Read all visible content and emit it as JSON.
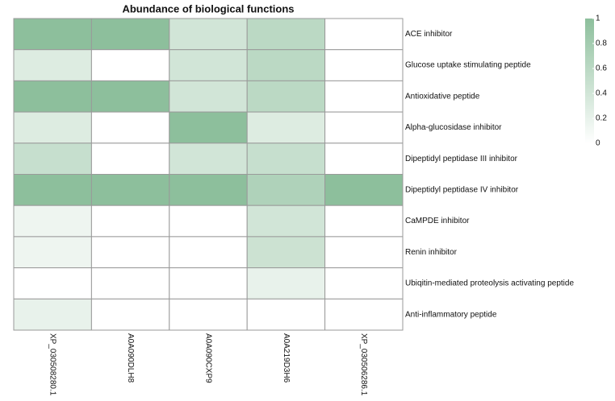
{
  "chart_data": {
    "type": "heatmap",
    "title": "Abundance of biological functions",
    "columns": [
      "XP_030508280.1",
      "A0A090DLH8",
      "A0A090CXP9",
      "A0A219D3H6",
      "XP_030506286.1"
    ],
    "rows": [
      "ACE inhibitor",
      "Glucose uptake stimulating peptide",
      "Antioxidative peptide",
      "Alpha-glucosidase inhibitor",
      "Dipeptidyl peptidase III inhibitor",
      "Dipeptidyl peptidase IV inhibitor",
      "CaMPDE inhibitor",
      "Renin inhibitor",
      "Ubiqitin-mediated proteolysis activating peptide",
      "Anti-inflammatory peptide"
    ],
    "values": [
      [
        1,
        1,
        0.4,
        0.6,
        0
      ],
      [
        0.3,
        0,
        0.4,
        0.6,
        0
      ],
      [
        1,
        1,
        0.4,
        0.6,
        0
      ],
      [
        0.3,
        0,
        1,
        0.3,
        0
      ],
      [
        0.5,
        0,
        0.4,
        0.5,
        0
      ],
      [
        1,
        1,
        1,
        0.7,
        1
      ],
      [
        0.15,
        0,
        0,
        0.4,
        0
      ],
      [
        0.15,
        0,
        0,
        0.45,
        0
      ],
      [
        0,
        0,
        0,
        0.2,
        0
      ],
      [
        0.2,
        0,
        0,
        0,
        0
      ]
    ],
    "colors": [
      "#ffffff",
      "#8dbf9c"
    ],
    "clim": [
      0,
      1
    ],
    "cticks": [
      0,
      0.2,
      0.4,
      0.6,
      0.8,
      1
    ]
  }
}
